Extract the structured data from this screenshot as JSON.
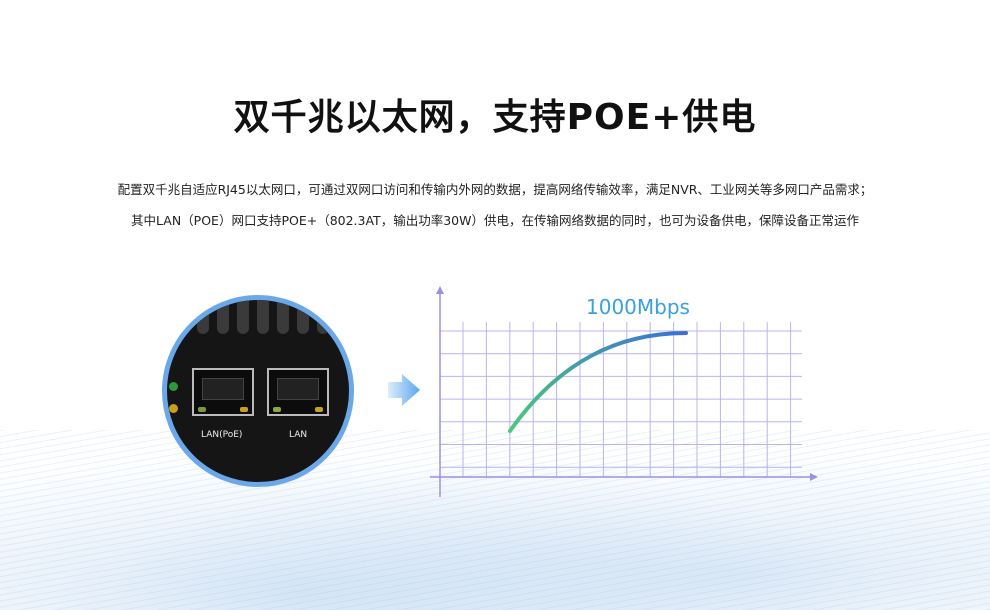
{
  "title": "双千兆以太网，支持POE+供电",
  "description": [
    "配置双千兆自适应RJ45以太网口，可通过双网口访问和传输内外网的数据，提高网络传输效率，满足NVR、工业网关等多网口产品需求；",
    "其中LAN（POE）网口支持POE+（802.3AT，输出功率30W）供电，在传输网络数据的同时，也可为设备供电，保障设备正常运作"
  ],
  "ports": [
    {
      "label": "LAN(PoE)"
    },
    {
      "label": "LAN"
    }
  ],
  "graph": {
    "label": "1000Mbps",
    "curve_start_color": "#4cc97a",
    "curve_end_color": "#3a6fd8",
    "grid_color": "#b8b4ee",
    "axis_color": "#9a90e6"
  },
  "colors": {
    "ring": "#6aa8ea",
    "arrow": "#5aa5f0"
  }
}
